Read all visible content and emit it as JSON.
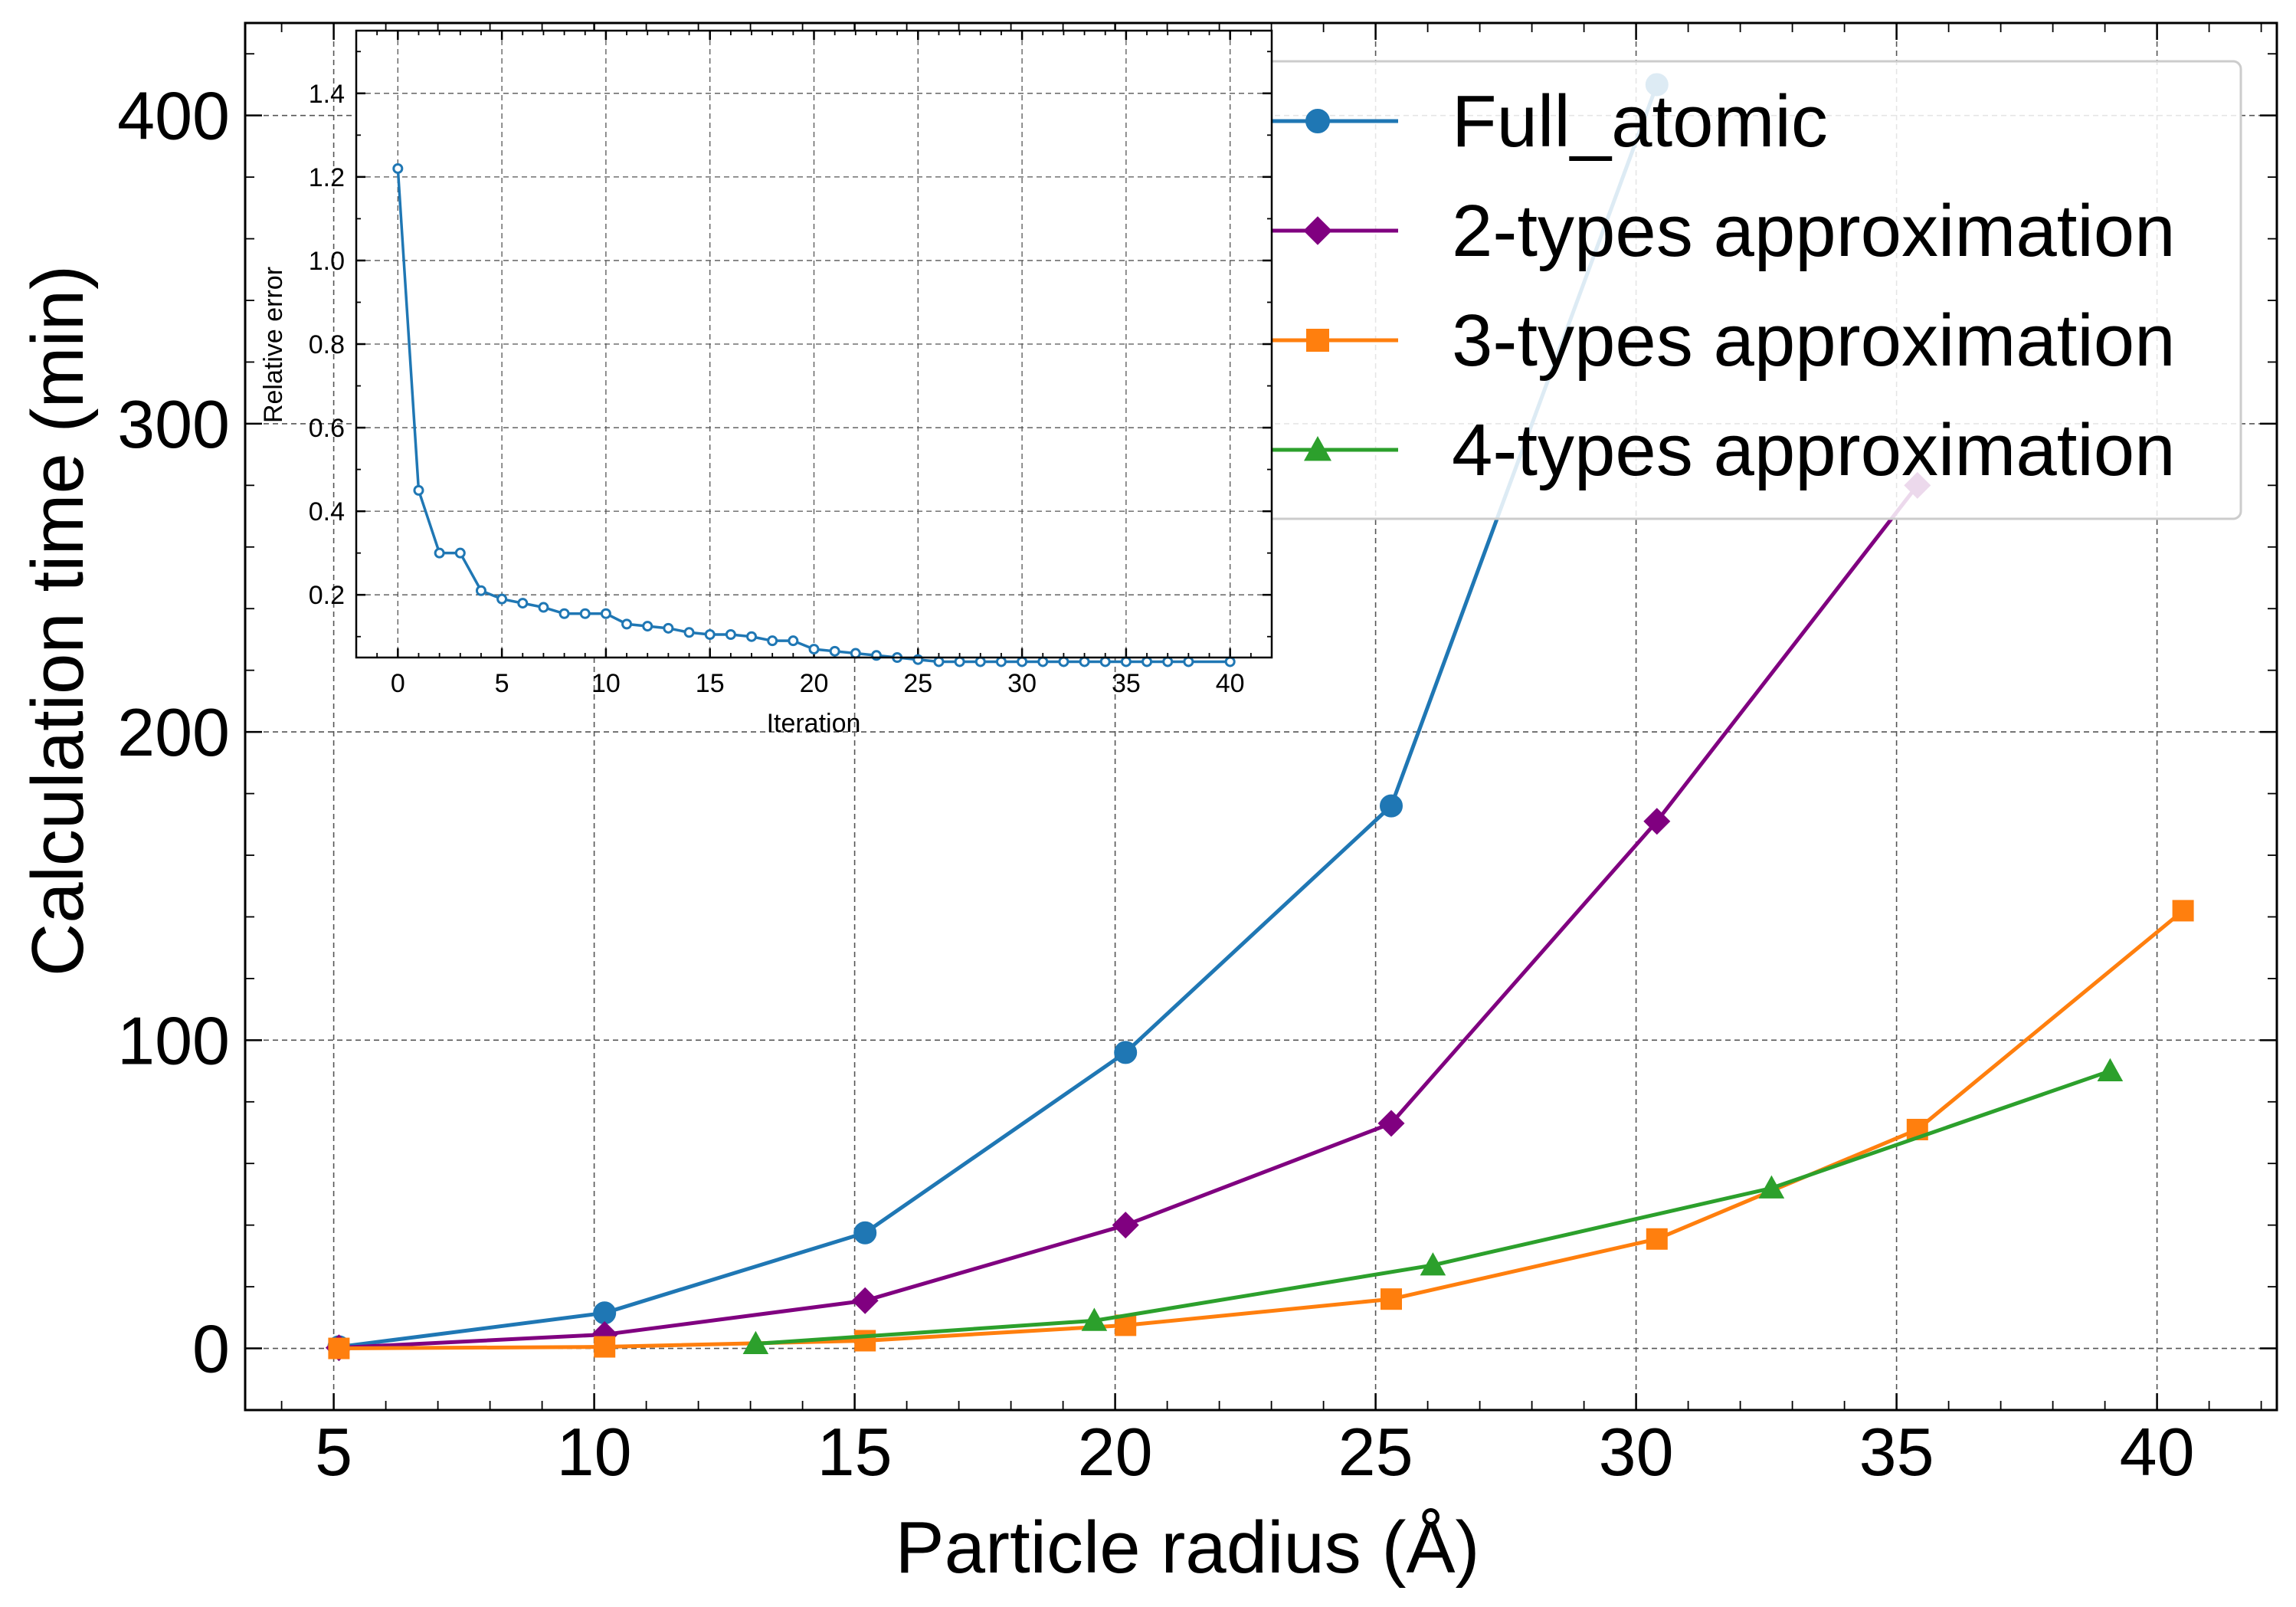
{
  "chart_data": [
    {
      "type": "line",
      "title": "",
      "xlabel": "Particle radius (Å)",
      "ylabel": "Calculation time (min)",
      "xlim": [
        3.3,
        42.3
      ],
      "ylim": [
        -20,
        430
      ],
      "xticks": [
        "5",
        "10",
        "15",
        "20",
        "25",
        "30",
        "35",
        "40"
      ],
      "yticks": [
        "0",
        "100",
        "200",
        "300",
        "400"
      ],
      "grid": true,
      "legend": "top-right",
      "series": [
        {
          "name": "Full_atomic",
          "color": "#1f77b4",
          "marker": "circle",
          "x": [
            5.1,
            10.2,
            15.2,
            20.2,
            25.3,
            30.4
          ],
          "y": [
            0.5,
            11.5,
            37.5,
            96,
            176,
            410
          ]
        },
        {
          "name": "2-types approximation",
          "color": "#800080",
          "marker": "diamond",
          "x": [
            5.1,
            10.2,
            15.2,
            20.2,
            25.3,
            30.4,
            35.4
          ],
          "y": [
            0.2,
            4.5,
            15.5,
            40,
            73,
            171,
            280
          ]
        },
        {
          "name": "3-types approximation",
          "color": "#ff7f0e",
          "marker": "square",
          "x": [
            5.1,
            10.2,
            15.2,
            20.2,
            25.3,
            30.4,
            35.4,
            40.5
          ],
          "y": [
            0,
            0.5,
            2.5,
            7.5,
            16,
            35.5,
            71,
            142
          ]
        },
        {
          "name": "4-types approximation",
          "color": "#2ca02c",
          "marker": "triangle",
          "x": [
            13.1,
            19.6,
            26.1,
            32.6,
            39.1
          ],
          "y": [
            1.5,
            9,
            27,
            52,
            90
          ]
        }
      ]
    },
    {
      "type": "line",
      "title": "",
      "xlabel": "Iteration",
      "ylabel": "Relative error",
      "xlim": [
        -2,
        42
      ],
      "ylim": [
        0.05,
        1.55
      ],
      "xticks": [
        "0",
        "5",
        "10",
        "15",
        "20",
        "25",
        "30",
        "35",
        "40"
      ],
      "yticks": [
        "0.2",
        "0.4",
        "0.6",
        "0.8",
        "1.0",
        "1.2",
        "1.4"
      ],
      "grid": true,
      "series": [
        {
          "color": "#1f77b4",
          "marker": "open-circle",
          "x": [
            0,
            1,
            2,
            3,
            4,
            5,
            6,
            7,
            8,
            9,
            10,
            11,
            12,
            13,
            14,
            15,
            16,
            17,
            18,
            19,
            20,
            21,
            22,
            23,
            24,
            25,
            26,
            27,
            28,
            29,
            30,
            31,
            32,
            33,
            34,
            35,
            36,
            37,
            38,
            40
          ],
          "y": [
            1.22,
            0.45,
            0.3,
            0.3,
            0.21,
            0.19,
            0.18,
            0.17,
            0.155,
            0.155,
            0.155,
            0.13,
            0.125,
            0.12,
            0.11,
            0.105,
            0.105,
            0.1,
            0.09,
            0.09,
            0.07,
            0.065,
            0.06,
            0.055,
            0.05,
            0.045,
            0.04,
            0.04,
            0.04,
            0.04,
            0.04,
            0.04,
            0.04,
            0.04,
            0.04,
            0.04,
            0.04,
            0.04,
            0.04,
            0.04
          ]
        }
      ]
    }
  ]
}
